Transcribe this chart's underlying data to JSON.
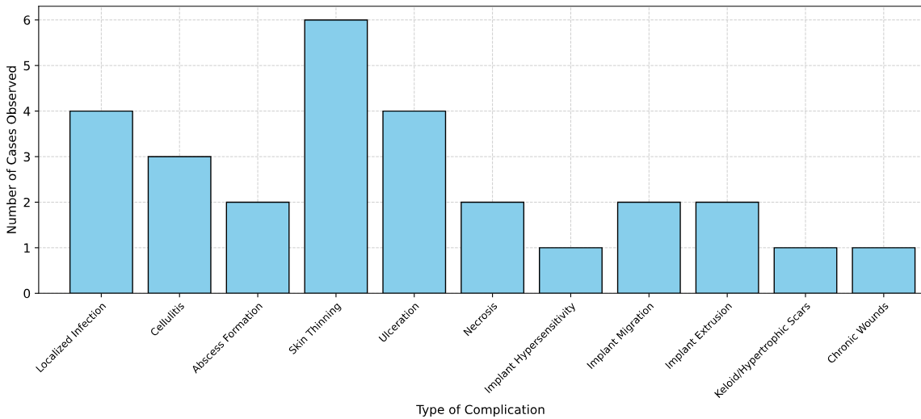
{
  "chart_data": {
    "type": "bar",
    "xlabel": "Type of Complication",
    "ylabel": "Number of Cases Observed",
    "categories": [
      "Localized Infection",
      "Cellulitis",
      "Abscess Formation",
      "Skin Thinning",
      "Ulceration",
      "Necrosis",
      "Implant Hypersensitivity",
      "Implant Migration",
      "Implant Extrusion",
      "Keloid/Hypertrophic Scars",
      "Chronic Wounds"
    ],
    "values": [
      4,
      3,
      2,
      6,
      4,
      2,
      1,
      2,
      2,
      1,
      1
    ],
    "color": "#87ceeb",
    "ylim": [
      0,
      6.3
    ],
    "yticks": [
      0,
      1,
      2,
      3,
      4,
      5,
      6
    ],
    "grid": true
  }
}
